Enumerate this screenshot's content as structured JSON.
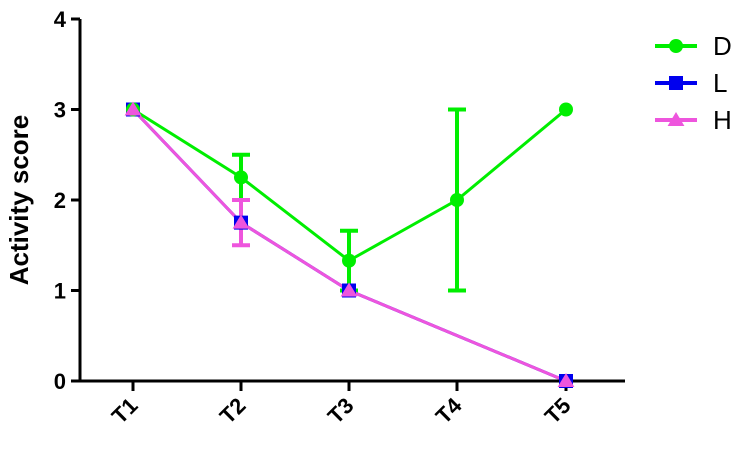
{
  "chart_data": {
    "type": "line",
    "title": "",
    "xlabel": "",
    "ylabel": "Activity score",
    "categories": [
      "T1",
      "T2",
      "T3",
      "T4",
      "T5"
    ],
    "ylim": [
      0,
      4
    ],
    "yticks": [
      "0",
      "1",
      "2",
      "3",
      "4"
    ],
    "grid": false,
    "legend_position": "top-right",
    "series": [
      {
        "name": "D",
        "color": "#00ee00",
        "marker": "circle",
        "values": [
          3,
          2.25,
          1.33,
          2,
          3
        ],
        "error": [
          0,
          0.25,
          0.33,
          1,
          0
        ]
      },
      {
        "name": "L",
        "color": "#0000ee",
        "marker": "square",
        "values": [
          3,
          1.75,
          1,
          null,
          0
        ],
        "error": [
          0,
          0,
          0,
          0,
          0
        ]
      },
      {
        "name": "H",
        "color": "#ee55dd",
        "marker": "triangle",
        "values": [
          3,
          1.75,
          1,
          null,
          0
        ],
        "error": [
          0,
          0.25,
          0,
          0,
          0
        ]
      }
    ]
  }
}
